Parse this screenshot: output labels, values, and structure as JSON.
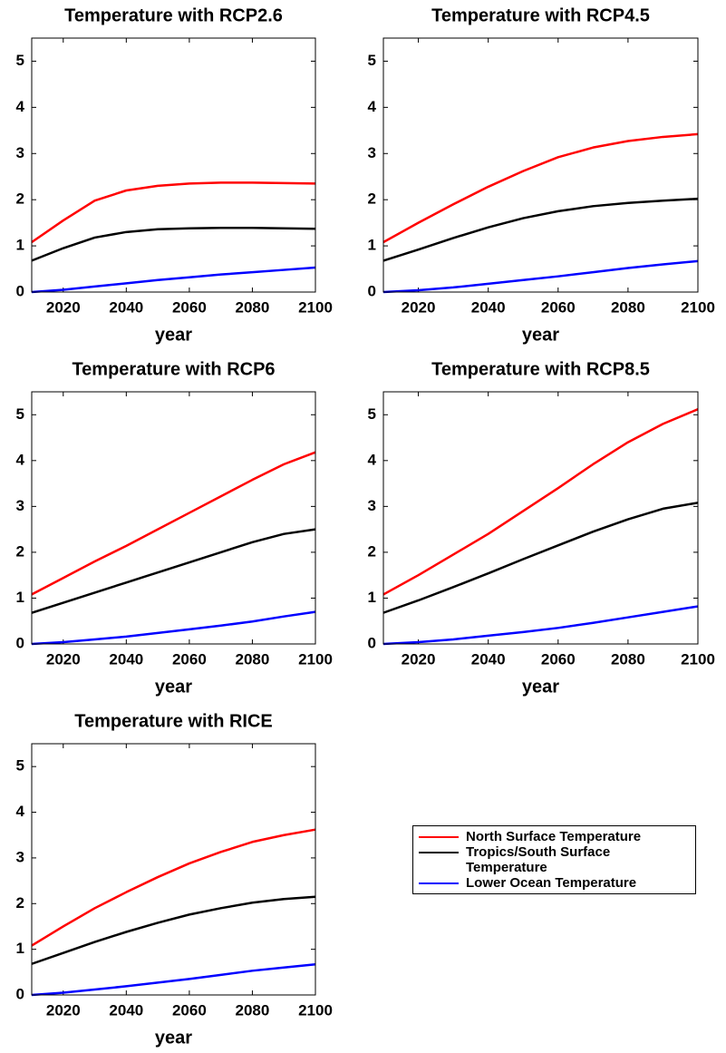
{
  "legend": [
    {
      "name": "North Surface Temperature",
      "color": "#ff0000"
    },
    {
      "name": "Tropics/South Surface Temperature",
      "color": "#000000"
    },
    {
      "name": "Lower Ocean Temperature",
      "color": "#0000ff"
    }
  ],
  "chart_data": [
    {
      "type": "line",
      "title": "Temperature with RCP2.6",
      "xlabel": "year",
      "x": [
        2010,
        2020,
        2030,
        2040,
        2050,
        2060,
        2070,
        2080,
        2090,
        2100
      ],
      "series": [
        {
          "values": [
            1.08,
            1.55,
            1.98,
            2.2,
            2.3,
            2.35,
            2.37,
            2.37,
            2.36,
            2.35
          ]
        },
        {
          "values": [
            0.68,
            0.95,
            1.18,
            1.3,
            1.36,
            1.38,
            1.39,
            1.39,
            1.38,
            1.37
          ]
        },
        {
          "values": [
            0,
            0.05,
            0.12,
            0.19,
            0.26,
            0.32,
            0.38,
            0.43,
            0.48,
            0.53
          ]
        }
      ],
      "xlim": [
        2010,
        2100
      ],
      "ylim": [
        0,
        5.5
      ],
      "xticks": [
        2020,
        2040,
        2060,
        2080,
        2100
      ],
      "yticks": [
        0,
        1,
        2,
        3,
        4,
        5
      ]
    },
    {
      "type": "line",
      "title": "Temperature with RCP4.5",
      "xlabel": "year",
      "x": [
        2010,
        2020,
        2030,
        2040,
        2050,
        2060,
        2070,
        2080,
        2090,
        2100
      ],
      "series": [
        {
          "values": [
            1.08,
            1.5,
            1.9,
            2.28,
            2.62,
            2.92,
            3.13,
            3.27,
            3.36,
            3.42
          ]
        },
        {
          "values": [
            0.68,
            0.92,
            1.17,
            1.4,
            1.6,
            1.75,
            1.86,
            1.93,
            1.98,
            2.02
          ]
        },
        {
          "values": [
            0,
            0.04,
            0.1,
            0.18,
            0.26,
            0.34,
            0.43,
            0.52,
            0.6,
            0.67
          ]
        }
      ],
      "xlim": [
        2010,
        2100
      ],
      "ylim": [
        0,
        5.5
      ],
      "xticks": [
        2020,
        2040,
        2060,
        2080,
        2100
      ],
      "yticks": [
        0,
        1,
        2,
        3,
        4,
        5
      ]
    },
    {
      "type": "line",
      "title": "Temperature with RCP6",
      "xlabel": "year",
      "x": [
        2010,
        2020,
        2030,
        2040,
        2050,
        2060,
        2070,
        2080,
        2090,
        2100
      ],
      "series": [
        {
          "values": [
            1.08,
            1.44,
            1.8,
            2.14,
            2.5,
            2.86,
            3.22,
            3.58,
            3.92,
            4.18
          ]
        },
        {
          "values": [
            0.68,
            0.9,
            1.12,
            1.34,
            1.56,
            1.78,
            2.0,
            2.22,
            2.4,
            2.5
          ]
        },
        {
          "values": [
            0,
            0.04,
            0.1,
            0.16,
            0.24,
            0.32,
            0.4,
            0.49,
            0.6,
            0.7
          ]
        }
      ],
      "xlim": [
        2010,
        2100
      ],
      "ylim": [
        0,
        5.5
      ],
      "xticks": [
        2020,
        2040,
        2060,
        2080,
        2100
      ],
      "yticks": [
        0,
        1,
        2,
        3,
        4,
        5
      ]
    },
    {
      "type": "line",
      "title": "Temperature with RCP8.5",
      "xlabel": "year",
      "x": [
        2010,
        2020,
        2030,
        2040,
        2050,
        2060,
        2070,
        2080,
        2090,
        2100
      ],
      "series": [
        {
          "values": [
            1.08,
            1.5,
            1.95,
            2.4,
            2.9,
            3.4,
            3.92,
            4.4,
            4.8,
            5.12
          ]
        },
        {
          "values": [
            0.68,
            0.95,
            1.24,
            1.54,
            1.85,
            2.15,
            2.45,
            2.72,
            2.95,
            3.08
          ]
        },
        {
          "values": [
            0,
            0.04,
            0.1,
            0.18,
            0.26,
            0.35,
            0.46,
            0.58,
            0.7,
            0.82
          ]
        }
      ],
      "xlim": [
        2010,
        2100
      ],
      "ylim": [
        0,
        5.5
      ],
      "xticks": [
        2020,
        2040,
        2060,
        2080,
        2100
      ],
      "yticks": [
        0,
        1,
        2,
        3,
        4,
        5
      ]
    },
    {
      "type": "line",
      "title": "Temperature with RICE",
      "xlabel": "year",
      "x": [
        2010,
        2020,
        2030,
        2040,
        2050,
        2060,
        2070,
        2080,
        2090,
        2100
      ],
      "series": [
        {
          "values": [
            1.08,
            1.5,
            1.9,
            2.25,
            2.58,
            2.88,
            3.13,
            3.35,
            3.5,
            3.62
          ]
        },
        {
          "values": [
            0.68,
            0.92,
            1.16,
            1.38,
            1.58,
            1.76,
            1.9,
            2.02,
            2.1,
            2.15
          ]
        },
        {
          "values": [
            0,
            0.05,
            0.12,
            0.19,
            0.27,
            0.35,
            0.44,
            0.53,
            0.6,
            0.67
          ]
        }
      ],
      "xlim": [
        2010,
        2100
      ],
      "ylim": [
        0,
        5.5
      ],
      "xticks": [
        2020,
        2040,
        2060,
        2080,
        2100
      ],
      "yticks": [
        0,
        1,
        2,
        3,
        4,
        5
      ]
    }
  ]
}
